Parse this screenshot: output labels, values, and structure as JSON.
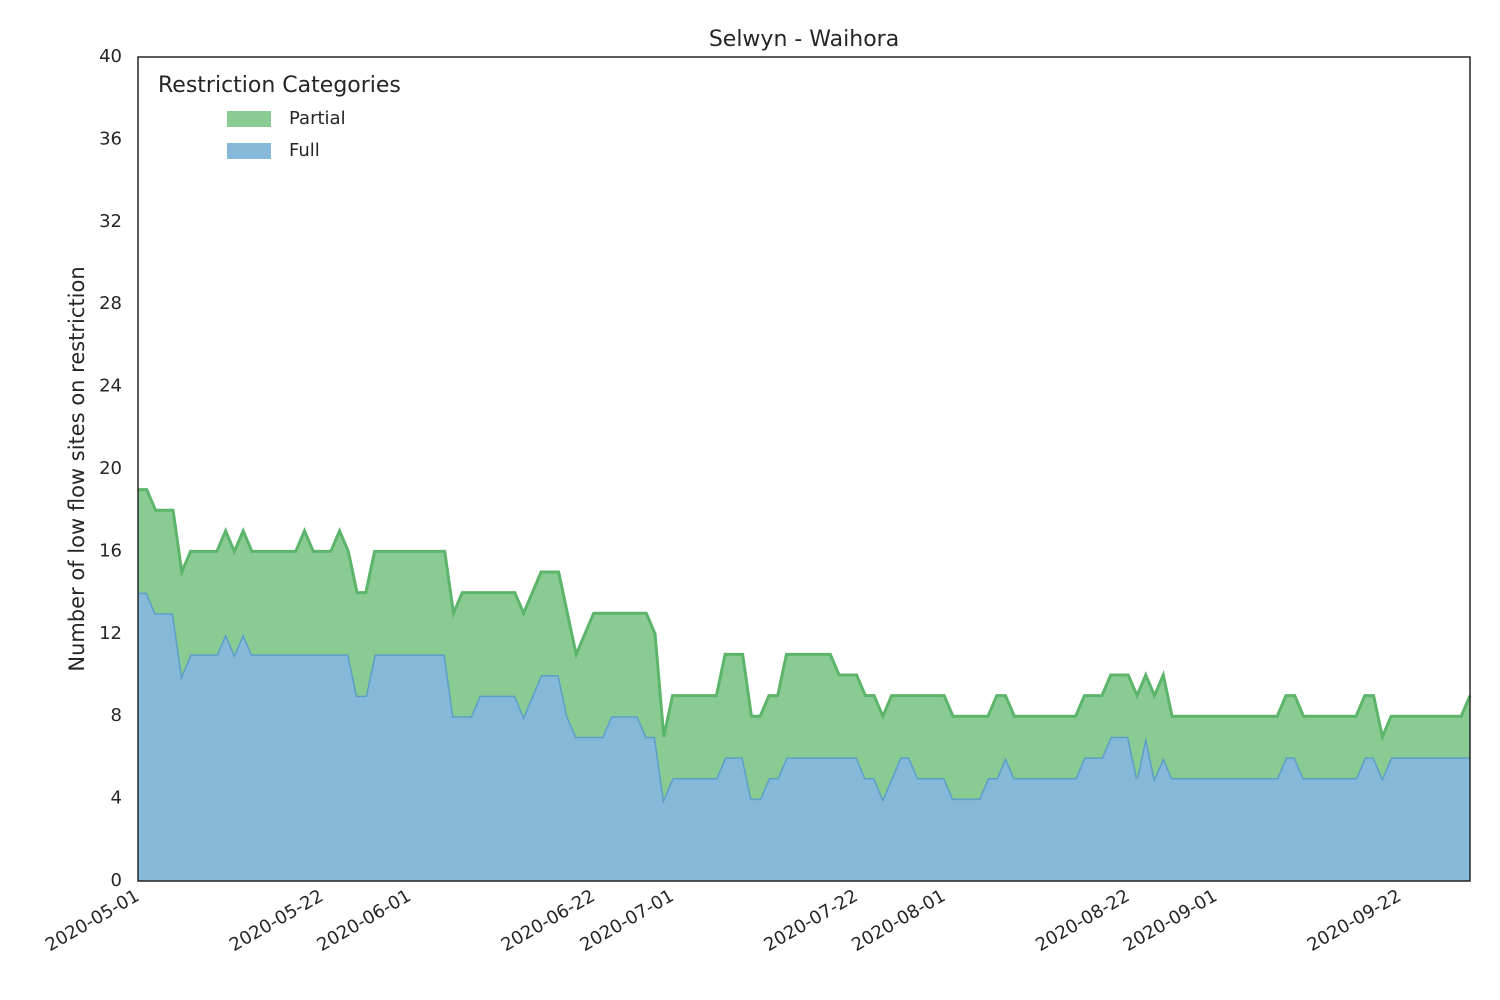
{
  "chart_data": {
    "type": "stacked_area",
    "title": "Selwyn - Waihora",
    "y_label": "Number of low flow sites on restriction",
    "legend_title": "Restriction Categories",
    "legend_loc": "upper left",
    "x": [
      "2020-05-01",
      "2020-05-02",
      "2020-05-03",
      "2020-05-04",
      "2020-05-05",
      "2020-05-06",
      "2020-05-07",
      "2020-05-08",
      "2020-05-09",
      "2020-05-10",
      "2020-05-11",
      "2020-05-12",
      "2020-05-13",
      "2020-05-14",
      "2020-05-15",
      "2020-05-16",
      "2020-05-17",
      "2020-05-18",
      "2020-05-19",
      "2020-05-20",
      "2020-05-21",
      "2020-05-22",
      "2020-05-23",
      "2020-05-24",
      "2020-05-25",
      "2020-05-26",
      "2020-05-27",
      "2020-05-28",
      "2020-05-29",
      "2020-05-30",
      "2020-05-31",
      "2020-06-01",
      "2020-06-02",
      "2020-06-03",
      "2020-06-04",
      "2020-06-05",
      "2020-06-06",
      "2020-06-07",
      "2020-06-08",
      "2020-06-09",
      "2020-06-10",
      "2020-06-11",
      "2020-06-12",
      "2020-06-13",
      "2020-06-14",
      "2020-06-15",
      "2020-06-16",
      "2020-06-17",
      "2020-06-18",
      "2020-06-19",
      "2020-06-20",
      "2020-06-21",
      "2020-06-22",
      "2020-06-23",
      "2020-06-24",
      "2020-06-25",
      "2020-06-26",
      "2020-06-27",
      "2020-06-28",
      "2020-06-29",
      "2020-06-30",
      "2020-07-01",
      "2020-07-02",
      "2020-07-03",
      "2020-07-04",
      "2020-07-05",
      "2020-07-06",
      "2020-07-07",
      "2020-07-08",
      "2020-07-09",
      "2020-07-10",
      "2020-07-11",
      "2020-07-12",
      "2020-07-13",
      "2020-07-14",
      "2020-07-15",
      "2020-07-16",
      "2020-07-17",
      "2020-07-18",
      "2020-07-19",
      "2020-07-20",
      "2020-07-21",
      "2020-07-22",
      "2020-07-23",
      "2020-07-24",
      "2020-07-25",
      "2020-07-26",
      "2020-07-27",
      "2020-07-28",
      "2020-07-29",
      "2020-07-30",
      "2020-07-31",
      "2020-08-01",
      "2020-08-02",
      "2020-08-03",
      "2020-08-04",
      "2020-08-05",
      "2020-08-06",
      "2020-08-07",
      "2020-08-08",
      "2020-08-09",
      "2020-08-10",
      "2020-08-11",
      "2020-08-12",
      "2020-08-13",
      "2020-08-14",
      "2020-08-15",
      "2020-08-16",
      "2020-08-17",
      "2020-08-18",
      "2020-08-19",
      "2020-08-20",
      "2020-08-21",
      "2020-08-22",
      "2020-08-23",
      "2020-08-24",
      "2020-08-25",
      "2020-08-26",
      "2020-08-27",
      "2020-08-28",
      "2020-08-29",
      "2020-08-30",
      "2020-08-31",
      "2020-09-01",
      "2020-09-02",
      "2020-09-03",
      "2020-09-04",
      "2020-09-05",
      "2020-09-06",
      "2020-09-07",
      "2020-09-08",
      "2020-09-09",
      "2020-09-10",
      "2020-09-11",
      "2020-09-12",
      "2020-09-13",
      "2020-09-14",
      "2020-09-15",
      "2020-09-16",
      "2020-09-17",
      "2020-09-18",
      "2020-09-19",
      "2020-09-20",
      "2020-09-21",
      "2020-09-22",
      "2020-09-23",
      "2020-09-24",
      "2020-09-25",
      "2020-09-26",
      "2020-09-27",
      "2020-09-28",
      "2020-09-29",
      "2020-09-30"
    ],
    "series": [
      {
        "name": "Full",
        "color": "#86b8d9",
        "line_color": "#5b9fc8",
        "values": [
          14,
          14,
          13,
          13,
          13,
          10,
          11,
          11,
          11,
          11,
          12,
          11,
          12,
          11,
          11,
          11,
          11,
          11,
          11,
          11,
          11,
          11,
          11,
          11,
          11,
          9,
          9,
          11,
          11,
          11,
          11,
          11,
          11,
          11,
          11,
          11,
          8,
          8,
          8,
          9,
          9,
          9,
          9,
          9,
          8,
          9,
          10,
          10,
          10,
          8,
          7,
          7,
          7,
          7,
          8,
          8,
          8,
          8,
          7,
          7,
          4,
          5,
          5,
          5,
          5,
          5,
          5,
          6,
          6,
          6,
          4,
          4,
          5,
          5,
          6,
          6,
          6,
          6,
          6,
          6,
          6,
          6,
          6,
          5,
          5,
          4,
          5,
          6,
          6,
          5,
          5,
          5,
          5,
          4,
          4,
          4,
          4,
          5,
          5,
          6,
          5,
          5,
          5,
          5,
          5,
          5,
          5,
          5,
          6,
          6,
          6,
          7,
          7,
          7,
          5,
          7,
          5,
          6,
          5,
          5,
          5,
          5,
          5,
          5,
          5,
          5,
          5,
          5,
          5,
          5,
          5,
          6,
          6,
          5,
          5,
          5,
          5,
          5,
          5,
          5,
          6,
          6,
          5,
          6,
          6,
          6,
          6,
          6,
          6,
          6,
          6,
          6,
          6
        ]
      },
      {
        "name": "Partial",
        "color": "#89cb93",
        "line_color": "#5cb56a",
        "values": [
          5,
          5,
          5,
          5,
          5,
          5,
          5,
          5,
          5,
          5,
          5,
          5,
          5,
          5,
          5,
          5,
          5,
          5,
          5,
          6,
          5,
          5,
          5,
          6,
          5,
          5,
          5,
          5,
          5,
          5,
          5,
          5,
          5,
          5,
          5,
          5,
          5,
          6,
          6,
          5,
          5,
          5,
          5,
          5,
          5,
          5,
          5,
          5,
          5,
          5,
          4,
          5,
          6,
          6,
          5,
          5,
          5,
          5,
          6,
          5,
          3,
          4,
          4,
          4,
          4,
          4,
          4,
          5,
          5,
          5,
          4,
          4,
          4,
          4,
          5,
          5,
          5,
          5,
          5,
          5,
          4,
          4,
          4,
          4,
          4,
          4,
          4,
          3,
          3,
          4,
          4,
          4,
          4,
          4,
          4,
          4,
          4,
          3,
          4,
          3,
          3,
          3,
          3,
          3,
          3,
          3,
          3,
          3,
          3,
          3,
          3,
          3,
          3,
          3,
          4,
          3,
          4,
          4,
          3,
          3,
          3,
          3,
          3,
          3,
          3,
          3,
          3,
          3,
          3,
          3,
          3,
          3,
          3,
          3,
          3,
          3,
          3,
          3,
          3,
          3,
          3,
          3,
          2,
          2,
          2,
          2,
          2,
          2,
          2,
          2,
          2,
          2,
          3
        ]
      }
    ],
    "xlim": [
      "2020-05-01",
      "2020-09-30"
    ],
    "xticks": [
      "2020-05-01",
      "2020-05-22",
      "2020-06-01",
      "2020-06-22",
      "2020-07-01",
      "2020-07-22",
      "2020-08-01",
      "2020-08-22",
      "2020-09-01",
      "2020-09-22"
    ],
    "ylim": [
      0,
      40
    ],
    "yticks": [
      0,
      4,
      8,
      12,
      16,
      20,
      24,
      28,
      32,
      36,
      40
    ],
    "grid": false
  }
}
